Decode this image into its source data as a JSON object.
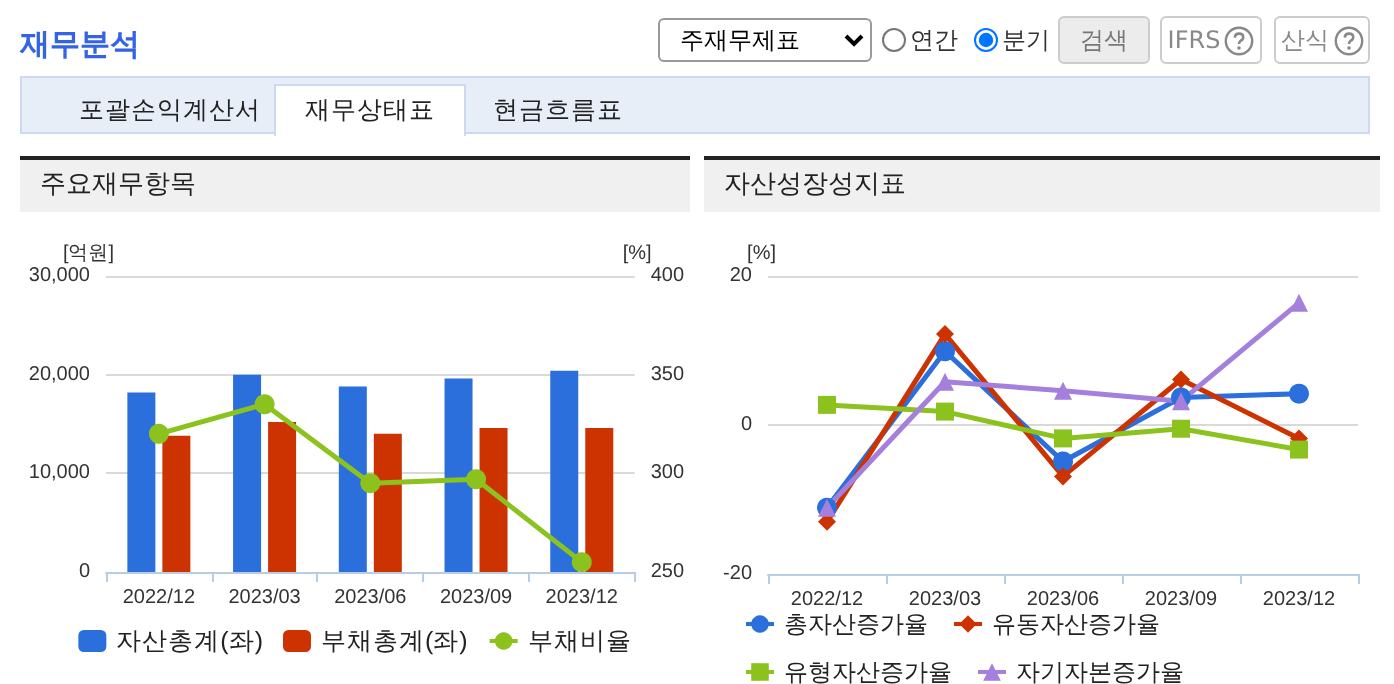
{
  "chart_data": [
    {
      "type": "other",
      "title": "재무분석",
      "annotations": [
        "주재무제표",
        "연간",
        "분기",
        "검색",
        "IFRS",
        "산식",
        "포괄손익계산서",
        "재무상태표",
        "현금흐름표"
      ]
    },
    {
      "type": "bar",
      "title": "주요재무항목",
      "categories": [
        "2022/12",
        "2023/03",
        "2023/06",
        "2023/09",
        "2023/12"
      ],
      "ylabel": "[억원]",
      "y2label": "[%]",
      "ylim": [
        0,
        30000
      ],
      "yticks": [
        0,
        {
          "value": 10000,
          "label": "10,000"
        },
        {
          "value": 20000,
          "label": "20,000"
        },
        {
          "value": 30000,
          "label": "30,000"
        }
      ],
      "y2lim": [
        250,
        400
      ],
      "y2ticks": [
        250,
        300,
        350,
        400
      ],
      "grid": "y",
      "legend": "bottom",
      "series": [
        {
          "name": "자산총계(좌)",
          "color": "#2a6fdb",
          "values": [
            18200,
            20000,
            18800,
            19600,
            20400
          ]
        },
        {
          "name": "부채총계(좌)",
          "color": "#cc3300",
          "values": [
            13800,
            15200,
            14000,
            14600,
            14600
          ]
        },
        {
          "name": "부채비율",
          "type": "line",
          "axis": "y2",
          "color": "#8cc21e",
          "marker": "circle",
          "values": [
            320,
            335,
            295,
            297,
            255
          ]
        }
      ]
    },
    {
      "type": "line",
      "title": "자산성장성지표",
      "categories": [
        "2022/12",
        "2023/03",
        "2023/06",
        "2023/09",
        "2023/12"
      ],
      "ylabel": "[%]",
      "ylim": [
        -20,
        20
      ],
      "yticks": [
        -20,
        0,
        20
      ],
      "grid": "y",
      "legend": "bottom",
      "series": [
        {
          "name": "총자산증가율",
          "color": "#2a6fdb",
          "marker": "circle",
          "values": [
            -11.1,
            9.9,
            -4.9,
            3.7,
            4.2
          ]
        },
        {
          "name": "유동자산증가율",
          "color": "#cc3300",
          "marker": "diamond",
          "values": [
            -13.0,
            12.2,
            -6.9,
            6.1,
            -1.8
          ]
        },
        {
          "name": "유형자산증가율",
          "color": "#8cc21e",
          "marker": "square",
          "values": [
            2.7,
            1.8,
            -1.8,
            -0.5,
            -3.3
          ]
        },
        {
          "name": "자기자본증가율",
          "color": "#a47fdc",
          "marker": "triangle",
          "values": [
            -11.1,
            5.8,
            4.6,
            3.2,
            16.4
          ]
        }
      ]
    }
  ]
}
